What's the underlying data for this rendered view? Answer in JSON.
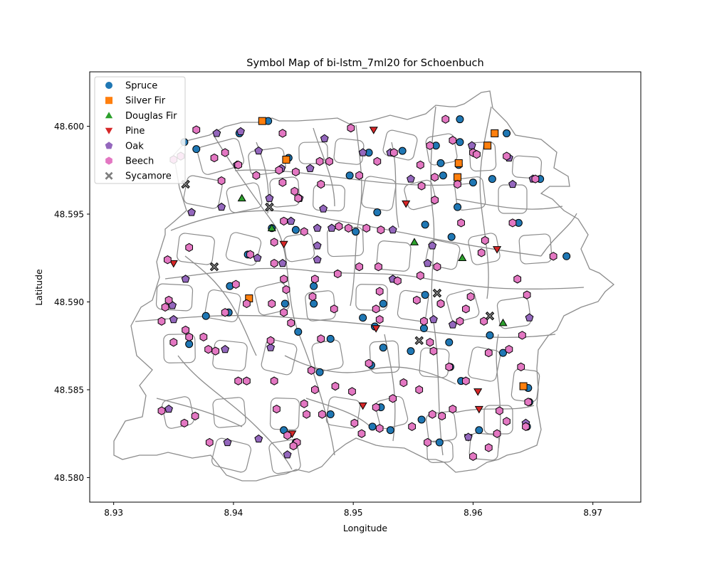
{
  "chart_data": {
    "type": "scatter",
    "title": "Symbol Map of bi-lstm_7ml20 for Schoenbuch",
    "xlabel": "Longitude",
    "ylabel": "Latitude",
    "xlim": [
      8.928,
      8.974
    ],
    "ylim": [
      48.5786,
      48.6031
    ],
    "x_ticks": [
      "8.93",
      "8.94",
      "8.95",
      "8.96",
      "8.97"
    ],
    "x_tick_values": [
      8.93,
      8.94,
      8.95,
      8.96,
      8.97
    ],
    "y_ticks": [
      "48.580",
      "48.585",
      "48.590",
      "48.595",
      "48.600"
    ],
    "y_tick_values": [
      48.58,
      48.585,
      48.59,
      48.595,
      48.6
    ],
    "grid": false,
    "legend_position": "upper-left",
    "background_map": "gray parcel outlines of Schoenbuch forest stands",
    "series": [
      {
        "name": "Spruce",
        "marker": "circle",
        "color": "#1f77b4",
        "points": [
          [
            8.9359,
            48.5991
          ],
          [
            8.9369,
            48.5987
          ],
          [
            8.9429,
            48.6003
          ],
          [
            8.9405,
            48.5996
          ],
          [
            8.9446,
            48.5982
          ],
          [
            8.9497,
            48.5972
          ],
          [
            8.9513,
            48.5985
          ],
          [
            8.9541,
            48.5986
          ],
          [
            8.9573,
            48.5979
          ],
          [
            8.9569,
            48.5989
          ],
          [
            8.9589,
            48.6004
          ],
          [
            8.9589,
            48.5991
          ],
          [
            8.9588,
            48.5978
          ],
          [
            8.9575,
            48.5972
          ],
          [
            8.96,
            48.5968
          ],
          [
            8.9616,
            48.597
          ],
          [
            8.9628,
            48.5996
          ],
          [
            8.9656,
            48.597
          ],
          [
            8.9587,
            48.5954
          ],
          [
            8.952,
            48.5951
          ],
          [
            8.9502,
            48.594
          ],
          [
            8.9452,
            48.5941
          ],
          [
            8.9432,
            48.5942
          ],
          [
            8.9412,
            48.5927
          ],
          [
            8.9397,
            48.5909
          ],
          [
            8.9467,
            48.5909
          ],
          [
            8.9443,
            48.5899
          ],
          [
            8.9467,
            48.5899
          ],
          [
            8.9396,
            48.5894
          ],
          [
            8.9377,
            48.5892
          ],
          [
            8.9363,
            48.5876
          ],
          [
            8.9454,
            48.5883
          ],
          [
            8.9481,
            48.5879
          ],
          [
            8.9508,
            48.5891
          ],
          [
            8.9525,
            48.5899
          ],
          [
            8.9518,
            48.5886
          ],
          [
            8.9525,
            48.5874
          ],
          [
            8.9548,
            48.5872
          ],
          [
            8.9559,
            48.5885
          ],
          [
            8.958,
            48.5877
          ],
          [
            8.956,
            48.5904
          ],
          [
            8.9573,
            48.5899
          ],
          [
            8.956,
            48.5944
          ],
          [
            8.9582,
            48.5937
          ],
          [
            8.9638,
            48.5945
          ],
          [
            8.9678,
            48.5926
          ],
          [
            8.9614,
            48.5881
          ],
          [
            8.9625,
            48.5871
          ],
          [
            8.9581,
            48.5863
          ],
          [
            8.959,
            48.5855
          ],
          [
            8.9515,
            48.5864
          ],
          [
            8.9472,
            48.586
          ],
          [
            8.9481,
            48.5836
          ],
          [
            8.9523,
            48.584
          ],
          [
            8.9531,
            48.5827
          ],
          [
            8.9516,
            48.5829
          ],
          [
            8.9572,
            48.582
          ],
          [
            8.9557,
            48.5833
          ],
          [
            8.9605,
            48.5827
          ],
          [
            8.9647,
            48.5843
          ],
          [
            8.9645,
            48.5829
          ],
          [
            8.9646,
            48.5851
          ],
          [
            8.9442,
            48.5827
          ],
          [
            8.9452,
            48.582
          ]
        ]
      },
      {
        "name": "Silver Fir",
        "marker": "square",
        "color": "#ff7f0e",
        "points": [
          [
            8.9424,
            48.6003
          ],
          [
            8.9444,
            48.5981
          ],
          [
            8.9588,
            48.5979
          ],
          [
            8.9587,
            48.5971
          ],
          [
            8.9618,
            48.5996
          ],
          [
            8.9612,
            48.5989
          ],
          [
            8.9413,
            48.5902
          ],
          [
            8.9642,
            48.5852
          ]
        ]
      },
      {
        "name": "Douglas Fir",
        "marker": "triangle-up",
        "color": "#2ca02c",
        "points": [
          [
            8.9407,
            48.5959
          ],
          [
            8.9432,
            48.5942
          ],
          [
            8.9551,
            48.5934
          ],
          [
            8.9591,
            48.5925
          ],
          [
            8.9625,
            48.5888
          ]
        ]
      },
      {
        "name": "Pine",
        "marker": "triangle-down",
        "color": "#d62728",
        "points": [
          [
            8.9517,
            48.5998
          ],
          [
            8.9544,
            48.5956
          ],
          [
            8.9442,
            48.5933
          ],
          [
            8.935,
            48.5922
          ],
          [
            8.962,
            48.593
          ],
          [
            8.9519,
            48.5885
          ],
          [
            8.9508,
            48.5841
          ],
          [
            8.9604,
            48.5849
          ],
          [
            8.9605,
            48.5839
          ],
          [
            8.9596,
            48.5823
          ],
          [
            8.9449,
            48.5825
          ]
        ]
      },
      {
        "name": "Oak",
        "marker": "pentagon",
        "color": "#9467bd",
        "points": [
          [
            8.9386,
            48.5996
          ],
          [
            8.9406,
            48.5997
          ],
          [
            8.9421,
            48.5986
          ],
          [
            8.944,
            48.5976
          ],
          [
            8.9464,
            48.5976
          ],
          [
            8.9476,
            48.5993
          ],
          [
            8.9403,
            48.5978
          ],
          [
            8.939,
            48.5954
          ],
          [
            8.9365,
            48.5951
          ],
          [
            8.943,
            48.5959
          ],
          [
            8.9455,
            48.5959
          ],
          [
            8.9475,
            48.5953
          ],
          [
            8.9448,
            48.5946
          ],
          [
            8.947,
            48.5942
          ],
          [
            8.9482,
            48.5942
          ],
          [
            8.947,
            48.5932
          ],
          [
            8.947,
            48.5924
          ],
          [
            8.9441,
            48.5922
          ],
          [
            8.936,
            48.5913
          ],
          [
            8.942,
            48.5925
          ],
          [
            8.9533,
            48.5913
          ],
          [
            8.9533,
            48.5941
          ],
          [
            8.9566,
            48.5932
          ],
          [
            8.9562,
            48.5922
          ],
          [
            8.9548,
            48.597
          ],
          [
            8.9633,
            48.5967
          ],
          [
            8.965,
            48.597
          ],
          [
            8.963,
            48.5982
          ],
          [
            8.9599,
            48.5989
          ],
          [
            8.9531,
            48.5985
          ],
          [
            8.9508,
            48.5985
          ],
          [
            8.9349,
            48.5898
          ],
          [
            8.935,
            48.589
          ],
          [
            8.9431,
            48.5874
          ],
          [
            8.9393,
            48.5873
          ],
          [
            8.9567,
            48.589
          ],
          [
            8.9647,
            48.5891
          ],
          [
            8.9583,
            48.5887
          ],
          [
            8.9346,
            48.5839
          ],
          [
            8.9395,
            48.582
          ],
          [
            8.9421,
            48.5822
          ],
          [
            8.9445,
            48.5813
          ],
          [
            8.9596,
            48.5823
          ],
          [
            8.9644,
            48.5831
          ]
        ]
      },
      {
        "name": "Beech",
        "marker": "hexagon",
        "color": "#e377c2",
        "points": [
          [
            8.9369,
            48.5998
          ],
          [
            8.9356,
            48.5983
          ],
          [
            8.935,
            48.5981
          ],
          [
            8.9384,
            48.5982
          ],
          [
            8.9393,
            48.5985
          ],
          [
            8.9404,
            48.5978
          ],
          [
            8.939,
            48.5969
          ],
          [
            8.9419,
            48.5972
          ],
          [
            8.9441,
            48.5996
          ],
          [
            8.9438,
            48.5975
          ],
          [
            8.9452,
            48.5974
          ],
          [
            8.9451,
            48.5963
          ],
          [
            8.9441,
            48.5968
          ],
          [
            8.9454,
            48.5959
          ],
          [
            8.9472,
            48.598
          ],
          [
            8.948,
            48.598
          ],
          [
            8.9473,
            48.5967
          ],
          [
            8.9498,
            48.5999
          ],
          [
            8.9505,
            48.5972
          ],
          [
            8.952,
            48.598
          ],
          [
            8.9534,
            48.5985
          ],
          [
            8.9556,
            48.5978
          ],
          [
            8.9564,
            48.5989
          ],
          [
            8.9568,
            48.5971
          ],
          [
            8.9557,
            48.5966
          ],
          [
            8.9568,
            48.5958
          ],
          [
            8.9583,
            48.5992
          ],
          [
            8.9577,
            48.6004
          ],
          [
            8.96,
            48.5985
          ],
          [
            8.9603,
            48.5984
          ],
          [
            8.9587,
            48.5967
          ],
          [
            8.959,
            48.5945
          ],
          [
            8.9628,
            48.5983
          ],
          [
            8.9633,
            48.5945
          ],
          [
            8.961,
            48.5935
          ],
          [
            8.9607,
            48.5928
          ],
          [
            8.9652,
            48.597
          ],
          [
            8.9667,
            48.5926
          ],
          [
            8.9637,
            48.5913
          ],
          [
            8.9645,
            48.5904
          ],
          [
            8.9641,
            48.5881
          ],
          [
            8.963,
            48.5873
          ],
          [
            8.964,
            48.5863
          ],
          [
            8.9613,
            48.5871
          ],
          [
            8.9594,
            48.5896
          ],
          [
            8.9598,
            48.5903
          ],
          [
            8.9609,
            48.5889
          ],
          [
            8.9589,
            48.5889
          ],
          [
            8.957,
            48.592
          ],
          [
            8.9573,
            48.5899
          ],
          [
            8.9553,
            48.5901
          ],
          [
            8.9556,
            48.5915
          ],
          [
            8.9521,
            48.592
          ],
          [
            8.9523,
            48.5941
          ],
          [
            8.9511,
            48.5942
          ],
          [
            8.9496,
            48.5942
          ],
          [
            8.9488,
            48.5943
          ],
          [
            8.9459,
            48.594
          ],
          [
            8.9442,
            48.5946
          ],
          [
            8.9434,
            48.5934
          ],
          [
            8.9434,
            48.5922
          ],
          [
            8.9442,
            48.5913
          ],
          [
            8.9414,
            48.5927
          ],
          [
            8.9402,
            48.591
          ],
          [
            8.9444,
            48.5907
          ],
          [
            8.9468,
            48.5913
          ],
          [
            8.9466,
            48.5903
          ],
          [
            8.9487,
            48.5916
          ],
          [
            8.9505,
            48.592
          ],
          [
            8.9537,
            48.5912
          ],
          [
            8.9522,
            48.5906
          ],
          [
            8.9484,
            48.5896
          ],
          [
            8.9519,
            48.5896
          ],
          [
            8.9522,
            48.589
          ],
          [
            8.9442,
            48.5894
          ],
          [
            8.9448,
            48.5888
          ],
          [
            8.9411,
            48.5899
          ],
          [
            8.9432,
            48.5899
          ],
          [
            8.9393,
            48.5894
          ],
          [
            8.9363,
            48.5931
          ],
          [
            8.9345,
            48.5924
          ],
          [
            8.9346,
            48.5901
          ],
          [
            8.9343,
            48.5897
          ],
          [
            8.934,
            48.5889
          ],
          [
            8.936,
            48.5884
          ],
          [
            8.9375,
            48.588
          ],
          [
            8.935,
            48.5877
          ],
          [
            8.9385,
            48.5872
          ],
          [
            8.9473,
            48.5879
          ],
          [
            8.9411,
            48.5855
          ],
          [
            8.9434,
            48.5855
          ],
          [
            8.9465,
            48.5861
          ],
          [
            8.9468,
            48.585
          ],
          [
            8.9485,
            48.5852
          ],
          [
            8.9499,
            48.5849
          ],
          [
            8.9513,
            48.5865
          ],
          [
            8.9542,
            48.5854
          ],
          [
            8.9533,
            48.5845
          ],
          [
            8.9519,
            48.584
          ],
          [
            8.9501,
            48.5831
          ],
          [
            8.9507,
            48.5825
          ],
          [
            8.9522,
            48.5828
          ],
          [
            8.9549,
            48.5829
          ],
          [
            8.9555,
            48.585
          ],
          [
            8.9574,
            48.5835
          ],
          [
            8.9566,
            48.5836
          ],
          [
            8.9583,
            48.5839
          ],
          [
            8.9562,
            48.582
          ],
          [
            8.958,
            48.5863
          ],
          [
            8.9567,
            48.5872
          ],
          [
            8.9594,
            48.5855
          ],
          [
            8.9564,
            48.5877
          ],
          [
            8.96,
            48.5812
          ],
          [
            8.9613,
            48.5817
          ],
          [
            8.962,
            48.5825
          ],
          [
            8.9628,
            48.5832
          ],
          [
            8.9622,
            48.5838
          ],
          [
            8.9644,
            48.5829
          ],
          [
            8.9646,
            48.5843
          ],
          [
            8.934,
            48.5838
          ],
          [
            8.9359,
            48.5831
          ],
          [
            8.9368,
            48.5835
          ],
          [
            8.938,
            48.582
          ],
          [
            8.9436,
            48.5839
          ],
          [
            8.9459,
            48.5842
          ],
          [
            8.9461,
            48.5836
          ],
          [
            8.9474,
            48.5836
          ],
          [
            8.9445,
            48.5824
          ],
          [
            8.9453,
            48.582
          ],
          [
            8.945,
            48.5818
          ],
          [
            8.9363,
            48.588
          ],
          [
            8.9379,
            48.5873
          ],
          [
            8.9559,
            48.5889
          ],
          [
            8.9431,
            48.5878
          ],
          [
            8.9404,
            48.5855
          ]
        ]
      },
      {
        "name": "Sycamore",
        "marker": "x",
        "color": "#7f7f7f",
        "points": [
          [
            8.936,
            48.5967
          ],
          [
            8.943,
            48.5954
          ],
          [
            8.9384,
            48.592
          ],
          [
            8.957,
            48.5905
          ],
          [
            8.9614,
            48.5892
          ],
          [
            8.9555,
            48.5878
          ]
        ]
      }
    ]
  }
}
